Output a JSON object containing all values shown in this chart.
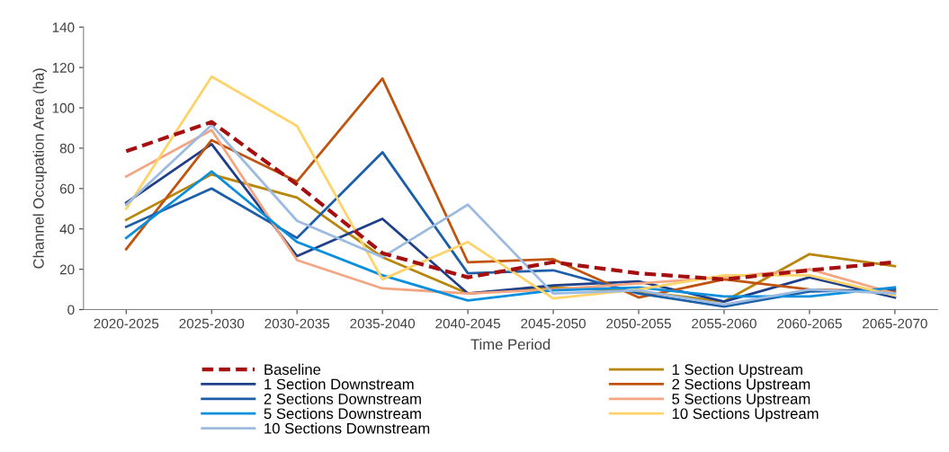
{
  "chart_data": {
    "type": "line",
    "xlabel": "Time Period",
    "ylabel": "Channel Occupation Area (ha)",
    "categories": [
      "2020-2025",
      "2025-2030",
      "2030-2035",
      "2035-2040",
      "2040-2045",
      "2045-2050",
      "2050-2055",
      "2055-2060",
      "2060-2065",
      "2065-2070"
    ],
    "ylim": [
      0,
      140
    ],
    "yticks": [
      0,
      20,
      40,
      60,
      80,
      100,
      120,
      140
    ],
    "grid": false,
    "legend": "bottom",
    "marker": "none",
    "series": [
      {
        "name": "Baseline",
        "color": "#a50f0f",
        "line_style": "dashed",
        "values": [
          78.5,
          93,
          62,
          28,
          16,
          23.5,
          18,
          15,
          19.5,
          23.5
        ]
      },
      {
        "name": "1 Section Upstream",
        "color": "#b8860b",
        "values": [
          44.5,
          67,
          55.5,
          26,
          8,
          11,
          9,
          4,
          27.5,
          21.5
        ]
      },
      {
        "name": "1 Section Downstream",
        "color": "#1f3f8a",
        "values": [
          53,
          82,
          26.5,
          45,
          8,
          12,
          14,
          4,
          16,
          6
        ]
      },
      {
        "name": "2 Sections Upstream",
        "color": "#c0540f",
        "values": [
          30,
          84,
          63.5,
          114.5,
          23.5,
          25,
          6,
          15,
          10,
          9
        ]
      },
      {
        "name": "2 Sections Downstream",
        "color": "#1c5fa8",
        "values": [
          41,
          60,
          35.5,
          78,
          18,
          19.5,
          8,
          1.5,
          9,
          10
        ]
      },
      {
        "name": "5 Sections Upstream",
        "color": "#f4a582",
        "values": [
          66,
          89,
          24.5,
          10.5,
          8,
          10,
          13,
          16,
          20,
          8
        ]
      },
      {
        "name": "5 Sections Downstream",
        "color": "#0a8fdc",
        "values": [
          35.5,
          68.5,
          33.5,
          17,
          4.5,
          9.5,
          11,
          6.5,
          6.5,
          11
        ]
      },
      {
        "name": "10 Sections Upstream",
        "color": "#fdd36a",
        "values": [
          50,
          115.5,
          91,
          15,
          33.5,
          5.5,
          10,
          17,
          17,
          7
        ]
      },
      {
        "name": "10 Sections Downstream",
        "color": "#9dbbe0",
        "values": [
          52,
          91.5,
          44,
          26,
          52,
          8,
          9.5,
          2.5,
          10,
          8
        ]
      }
    ]
  }
}
